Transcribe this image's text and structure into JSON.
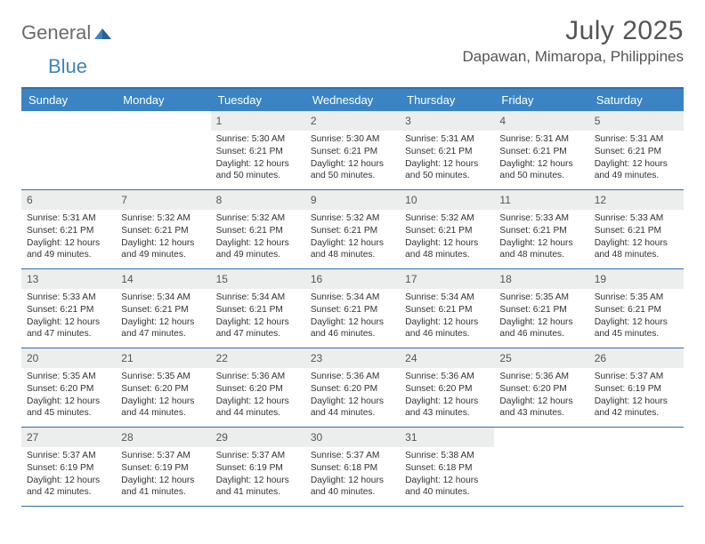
{
  "logo": {
    "part1": "General",
    "part2": "Blue"
  },
  "title": "July 2025",
  "location": "Dapawan, Mimaropa, Philippines",
  "colors": {
    "header_bg": "#3b84c4",
    "header_border": "#2e6ea8",
    "daynum_bg": "#eceded",
    "text": "#333333",
    "title_text": "#555555"
  },
  "day_names": [
    "Sunday",
    "Monday",
    "Tuesday",
    "Wednesday",
    "Thursday",
    "Friday",
    "Saturday"
  ],
  "weeks": [
    [
      null,
      null,
      {
        "n": "1",
        "sr": "5:30 AM",
        "ss": "6:21 PM",
        "dl": "12 hours and 50 minutes."
      },
      {
        "n": "2",
        "sr": "5:30 AM",
        "ss": "6:21 PM",
        "dl": "12 hours and 50 minutes."
      },
      {
        "n": "3",
        "sr": "5:31 AM",
        "ss": "6:21 PM",
        "dl": "12 hours and 50 minutes."
      },
      {
        "n": "4",
        "sr": "5:31 AM",
        "ss": "6:21 PM",
        "dl": "12 hours and 50 minutes."
      },
      {
        "n": "5",
        "sr": "5:31 AM",
        "ss": "6:21 PM",
        "dl": "12 hours and 49 minutes."
      }
    ],
    [
      {
        "n": "6",
        "sr": "5:31 AM",
        "ss": "6:21 PM",
        "dl": "12 hours and 49 minutes."
      },
      {
        "n": "7",
        "sr": "5:32 AM",
        "ss": "6:21 PM",
        "dl": "12 hours and 49 minutes."
      },
      {
        "n": "8",
        "sr": "5:32 AM",
        "ss": "6:21 PM",
        "dl": "12 hours and 49 minutes."
      },
      {
        "n": "9",
        "sr": "5:32 AM",
        "ss": "6:21 PM",
        "dl": "12 hours and 48 minutes."
      },
      {
        "n": "10",
        "sr": "5:32 AM",
        "ss": "6:21 PM",
        "dl": "12 hours and 48 minutes."
      },
      {
        "n": "11",
        "sr": "5:33 AM",
        "ss": "6:21 PM",
        "dl": "12 hours and 48 minutes."
      },
      {
        "n": "12",
        "sr": "5:33 AM",
        "ss": "6:21 PM",
        "dl": "12 hours and 48 minutes."
      }
    ],
    [
      {
        "n": "13",
        "sr": "5:33 AM",
        "ss": "6:21 PM",
        "dl": "12 hours and 47 minutes."
      },
      {
        "n": "14",
        "sr": "5:34 AM",
        "ss": "6:21 PM",
        "dl": "12 hours and 47 minutes."
      },
      {
        "n": "15",
        "sr": "5:34 AM",
        "ss": "6:21 PM",
        "dl": "12 hours and 47 minutes."
      },
      {
        "n": "16",
        "sr": "5:34 AM",
        "ss": "6:21 PM",
        "dl": "12 hours and 46 minutes."
      },
      {
        "n": "17",
        "sr": "5:34 AM",
        "ss": "6:21 PM",
        "dl": "12 hours and 46 minutes."
      },
      {
        "n": "18",
        "sr": "5:35 AM",
        "ss": "6:21 PM",
        "dl": "12 hours and 46 minutes."
      },
      {
        "n": "19",
        "sr": "5:35 AM",
        "ss": "6:21 PM",
        "dl": "12 hours and 45 minutes."
      }
    ],
    [
      {
        "n": "20",
        "sr": "5:35 AM",
        "ss": "6:20 PM",
        "dl": "12 hours and 45 minutes."
      },
      {
        "n": "21",
        "sr": "5:35 AM",
        "ss": "6:20 PM",
        "dl": "12 hours and 44 minutes."
      },
      {
        "n": "22",
        "sr": "5:36 AM",
        "ss": "6:20 PM",
        "dl": "12 hours and 44 minutes."
      },
      {
        "n": "23",
        "sr": "5:36 AM",
        "ss": "6:20 PM",
        "dl": "12 hours and 44 minutes."
      },
      {
        "n": "24",
        "sr": "5:36 AM",
        "ss": "6:20 PM",
        "dl": "12 hours and 43 minutes."
      },
      {
        "n": "25",
        "sr": "5:36 AM",
        "ss": "6:20 PM",
        "dl": "12 hours and 43 minutes."
      },
      {
        "n": "26",
        "sr": "5:37 AM",
        "ss": "6:19 PM",
        "dl": "12 hours and 42 minutes."
      }
    ],
    [
      {
        "n": "27",
        "sr": "5:37 AM",
        "ss": "6:19 PM",
        "dl": "12 hours and 42 minutes."
      },
      {
        "n": "28",
        "sr": "5:37 AM",
        "ss": "6:19 PM",
        "dl": "12 hours and 41 minutes."
      },
      {
        "n": "29",
        "sr": "5:37 AM",
        "ss": "6:19 PM",
        "dl": "12 hours and 41 minutes."
      },
      {
        "n": "30",
        "sr": "5:37 AM",
        "ss": "6:18 PM",
        "dl": "12 hours and 40 minutes."
      },
      {
        "n": "31",
        "sr": "5:38 AM",
        "ss": "6:18 PM",
        "dl": "12 hours and 40 minutes."
      },
      null,
      null
    ]
  ],
  "labels": {
    "sunrise": "Sunrise:",
    "sunset": "Sunset:",
    "daylight": "Daylight:"
  }
}
